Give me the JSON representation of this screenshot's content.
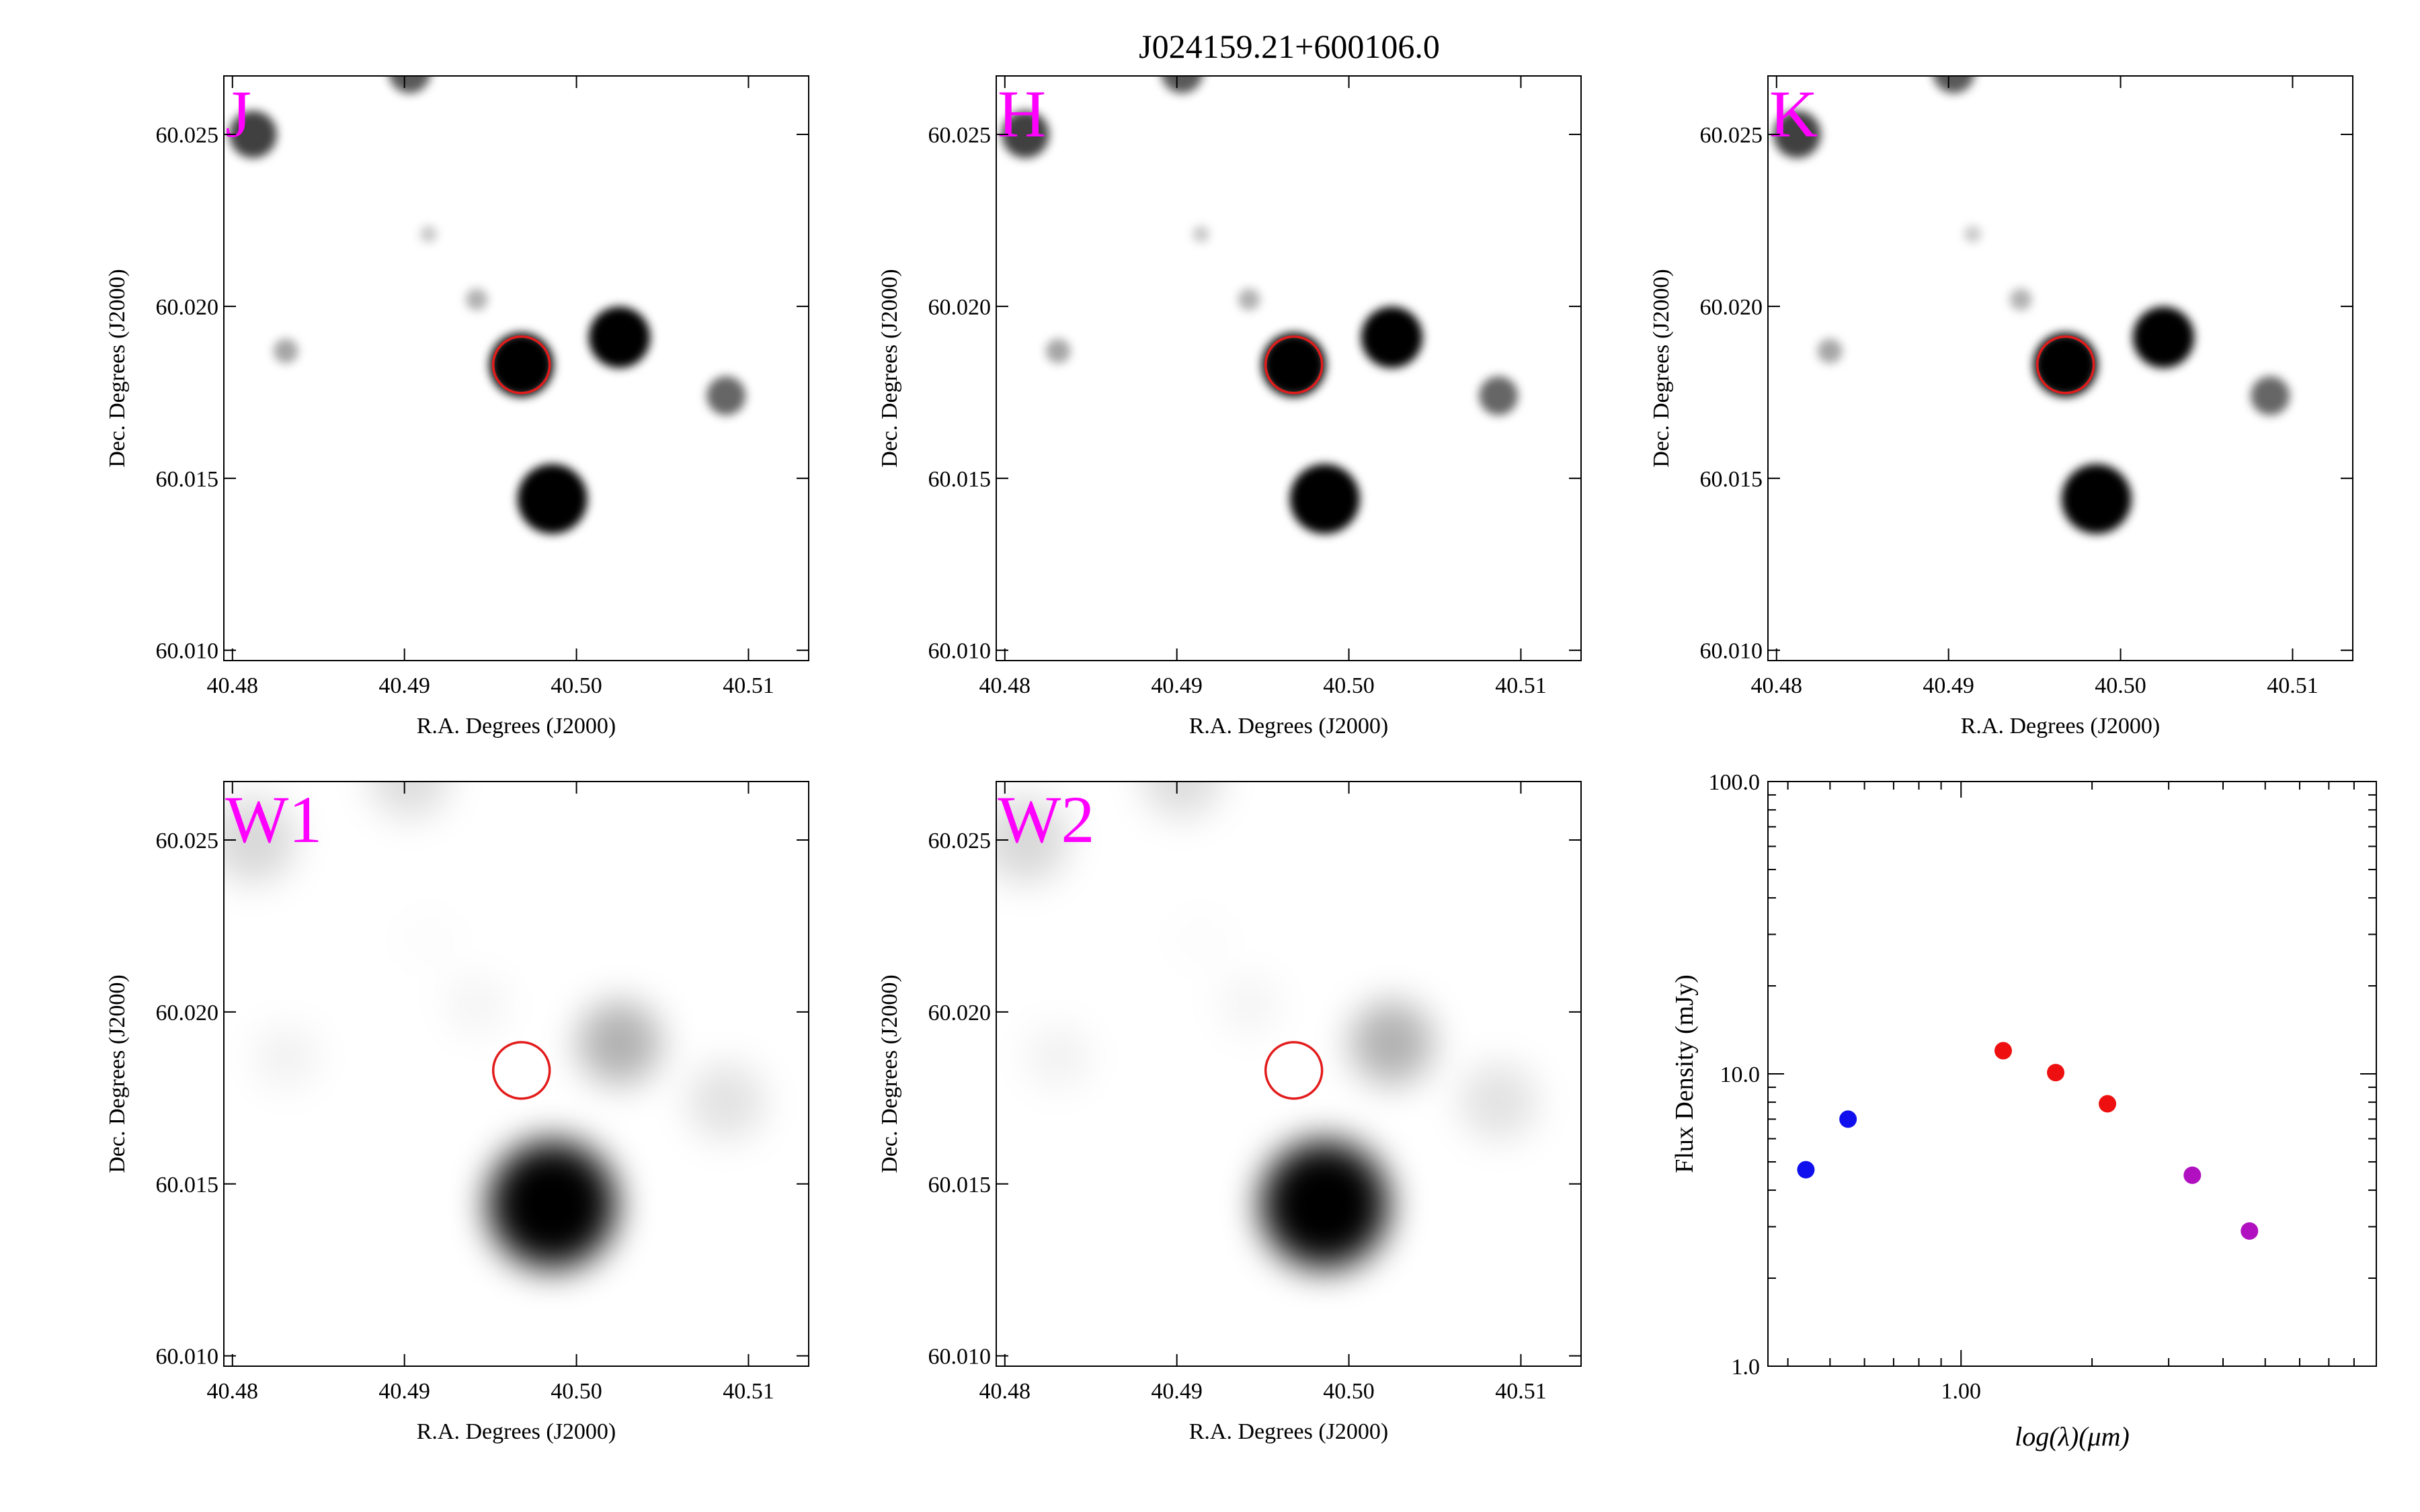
{
  "figure_title": "J024159.21+600106.0",
  "colors": {
    "band_label": "#ff00ff",
    "circle": "#e31b1b",
    "axis": "#000000",
    "sed_blue": "#1010ee",
    "sed_red": "#ee1010",
    "sed_purple": "#b010c0"
  },
  "image_panels": [
    {
      "band": "J",
      "style": "sharp",
      "show_target_star": true,
      "xlabel": "R.A. Degrees (J2000)",
      "ylabel": "Dec. Degrees (J2000)",
      "xticks": [
        "40.48",
        "40.49",
        "40.50",
        "40.51"
      ],
      "yticks": [
        "60.010",
        "60.015",
        "60.020",
        "60.025"
      ]
    },
    {
      "band": "H",
      "style": "sharp",
      "show_target_star": true,
      "xlabel": "R.A. Degrees (J2000)",
      "ylabel": "Dec. Degrees (J2000)",
      "xticks": [
        "40.48",
        "40.49",
        "40.50",
        "40.51"
      ],
      "yticks": [
        "60.010",
        "60.015",
        "60.020",
        "60.025"
      ]
    },
    {
      "band": "K",
      "style": "sharp",
      "show_target_star": true,
      "xlabel": "R.A. Degrees (J2000)",
      "ylabel": "Dec. Degrees (J2000)",
      "xticks": [
        "40.48",
        "40.49",
        "40.50",
        "40.51"
      ],
      "yticks": [
        "60.010",
        "60.015",
        "60.020",
        "60.025"
      ]
    },
    {
      "band": "W1",
      "style": "blurred",
      "show_target_star": false,
      "xlabel": "R.A. Degrees (J2000)",
      "ylabel": "Dec. Degrees (J2000)",
      "xticks": [
        "40.48",
        "40.49",
        "40.50",
        "40.51"
      ],
      "yticks": [
        "60.010",
        "60.015",
        "60.020",
        "60.025"
      ]
    },
    {
      "band": "W2",
      "style": "blurred",
      "show_target_star": false,
      "xlabel": "R.A. Degrees (J2000)",
      "ylabel": "Dec. Degrees (J2000)",
      "xticks": [
        "40.48",
        "40.49",
        "40.50",
        "40.51"
      ],
      "yticks": [
        "60.010",
        "60.015",
        "60.020",
        "60.025"
      ]
    }
  ],
  "sky": {
    "ra_range": [
      40.4795,
      40.5135
    ],
    "dec_range": [
      60.0097,
      60.0267
    ],
    "target": {
      "ra": 40.4968,
      "dec": 60.0183
    },
    "sources": [
      {
        "ra": 40.4968,
        "dec": 60.0183,
        "mag": 0.9,
        "target": true
      },
      {
        "ra": 40.4986,
        "dec": 60.0144,
        "mag": 1.0
      },
      {
        "ra": 40.5025,
        "dec": 60.0191,
        "mag": 0.85
      },
      {
        "ra": 40.5087,
        "dec": 60.0174,
        "mag": 0.45
      },
      {
        "ra": 40.4812,
        "dec": 60.025,
        "mag": 0.6
      },
      {
        "ra": 40.4831,
        "dec": 60.0187,
        "mag": 0.2
      },
      {
        "ra": 40.4942,
        "dec": 60.0202,
        "mag": 0.15
      },
      {
        "ra": 40.4903,
        "dec": 60.0268,
        "mag": 0.5
      },
      {
        "ra": 40.4914,
        "dec": 60.0221,
        "mag": 0.06
      }
    ]
  },
  "chart_data": {
    "type": "scatter",
    "xlabel": "log(λ)(μm)",
    "ylabel": "Flux Density (mJy)",
    "xscale": "log",
    "yscale": "log",
    "xlim": [
      0.36,
      9.0
    ],
    "ylim": [
      1.0,
      100.0
    ],
    "ytick_labels": [
      "1.0",
      "10.0",
      "100.0"
    ],
    "xtick_labels": [
      "1.00"
    ],
    "series": [
      {
        "color": "blue",
        "x": [
          0.44,
          0.55
        ],
        "y": [
          4.7,
          7.0
        ]
      },
      {
        "color": "red",
        "x": [
          1.25,
          1.65,
          2.17
        ],
        "y": [
          12.0,
          10.1,
          7.9
        ]
      },
      {
        "color": "purple",
        "x": [
          3.4,
          4.6
        ],
        "y": [
          4.5,
          2.9
        ]
      }
    ]
  }
}
